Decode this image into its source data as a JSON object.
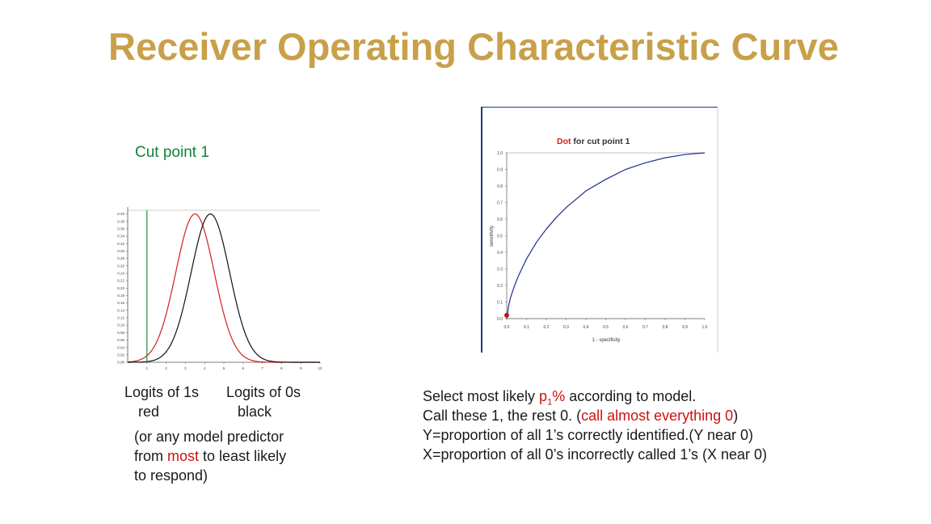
{
  "slide": {
    "title": "Receiver Operating Characteristic Curve",
    "cut_point_label": "Cut point   1",
    "left_caption": {
      "logits1": "Logits of 1s",
      "logits1_color": "red",
      "logits0": "Logits of 0s",
      "logits0_color": "black",
      "note_line1": "(or any model predictor",
      "note_line2_pre": "from ",
      "note_line2_red": "most",
      "note_line2_post": " to least likely",
      "note_line3": "to respond)"
    },
    "right_text": {
      "line1_pre": "Select most likely ",
      "line1_p": "p",
      "line1_sub": "1",
      "line1_pct": "%",
      "line1_post": " according to model.",
      "line2_pre": "Call these 1, the rest 0. (",
      "line2_red": "call almost everything 0",
      "line2_post": ")",
      "line3": "Y=proportion of all  1’s correctly identified.(Y near 0)",
      "line4": "X=proportion of all 0’s incorrectly called 1’s (X near 0)"
    }
  },
  "colors": {
    "title": "#c9a04a",
    "cut": "#11823b",
    "red_series": "#d11f1f",
    "black_series": "#111111",
    "roc_curve": "#1f2f8a",
    "highlight": "#cc1111"
  },
  "chart_data": [
    {
      "type": "line",
      "x_ticks": [
        "1",
        "2",
        "3",
        "4",
        "5",
        "6",
        "7",
        "8",
        "9",
        "10"
      ],
      "y_ticks": [
        "0.00",
        "0.02",
        "0.04",
        "0.06",
        "0.08",
        "0.10",
        "0.12",
        "0.14",
        "0.16",
        "0.18",
        "0.20",
        "0.22",
        "0.24",
        "0.26",
        "0.28",
        "0.30",
        "0.32",
        "0.34",
        "0.36",
        "0.38",
        "0.40"
      ],
      "xlim": [
        0,
        10
      ],
      "ylim": [
        0,
        0.41
      ],
      "cut_point": 1,
      "series": [
        {
          "color": "red",
          "mean": 3.5,
          "sd": 1.0,
          "peak": 0.4
        },
        {
          "color": "black",
          "mean": 4.3,
          "sd": 1.0,
          "peak": 0.4
        }
      ]
    },
    {
      "type": "line",
      "title_red": "Dot",
      "title_rest": " for cut point 1",
      "xlabel": "1 - specificity",
      "ylabel": "sensitivity",
      "xlim": [
        0,
        1
      ],
      "ylim": [
        0,
        1
      ],
      "x_ticks": [
        "0.0",
        "0.1",
        "0.2",
        "0.3",
        "0.4",
        "0.5",
        "0.6",
        "0.7",
        "0.8",
        "0.9",
        "1.0"
      ],
      "y_ticks": [
        "0.0",
        "0.1",
        "0.2",
        "0.3",
        "0.4",
        "0.5",
        "0.6",
        "0.7",
        "0.8",
        "0.9",
        "1.0"
      ],
      "dot": [
        0.0,
        0.02
      ],
      "curve": [
        [
          0.0,
          0.0
        ],
        [
          0.01,
          0.08
        ],
        [
          0.02,
          0.13
        ],
        [
          0.04,
          0.2
        ],
        [
          0.06,
          0.26
        ],
        [
          0.08,
          0.31
        ],
        [
          0.1,
          0.36
        ],
        [
          0.15,
          0.46
        ],
        [
          0.2,
          0.54
        ],
        [
          0.25,
          0.61
        ],
        [
          0.3,
          0.67
        ],
        [
          0.35,
          0.72
        ],
        [
          0.4,
          0.77
        ],
        [
          0.5,
          0.84
        ],
        [
          0.6,
          0.9
        ],
        [
          0.7,
          0.94
        ],
        [
          0.8,
          0.97
        ],
        [
          0.9,
          0.99
        ],
        [
          1.0,
          1.0
        ]
      ]
    }
  ]
}
